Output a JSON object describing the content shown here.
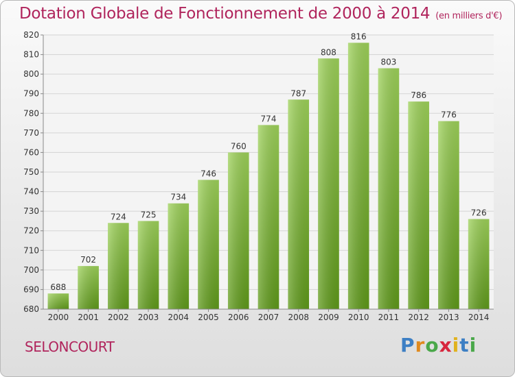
{
  "title": "Dotation Globale de Fonctionnement de 2000 à 2014",
  "unit": "(en milliers d'€)",
  "commune": "SELONCOURT",
  "logo": {
    "p": "P",
    "r": "r",
    "o": "o",
    "x": "x",
    "i1": "i",
    "t": "t",
    "i2": "i"
  },
  "colors": {
    "title": "#b0245c",
    "bar_top": "#9ed25a",
    "bar_bottom": "#5f9a1a"
  },
  "chart_data": {
    "type": "bar",
    "title": "Dotation Globale de Fonctionnement de 2000 à 2014",
    "subtitle": "(en milliers d'€)",
    "xlabel": "",
    "ylabel": "",
    "categories": [
      "2000",
      "2001",
      "2002",
      "2003",
      "2004",
      "2005",
      "2006",
      "2007",
      "2008",
      "2009",
      "2010",
      "2011",
      "2012",
      "2013",
      "2014"
    ],
    "values": [
      688,
      702,
      724,
      725,
      734,
      746,
      760,
      774,
      787,
      808,
      816,
      803,
      786,
      776,
      726
    ],
    "ylim": [
      680,
      820
    ],
    "yticks": [
      680,
      690,
      700,
      710,
      720,
      730,
      740,
      750,
      760,
      770,
      780,
      790,
      800,
      810,
      820
    ],
    "grid": true,
    "legend": "none"
  }
}
